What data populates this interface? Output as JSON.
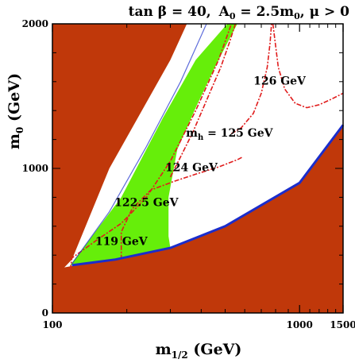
{
  "chart_data": {
    "type": "heatmap",
    "title_parts": {
      "tan_beta": "tan β = 40,",
      "a0": "A",
      "a0_sub": "0",
      "a0_val": " = 2.5m",
      "m0_sub": "0",
      "mu": ",  μ > 0"
    },
    "xlabel": {
      "main": "m",
      "sub": "1/2",
      "tail": " (GeV)"
    },
    "ylabel": {
      "main": "m",
      "sub": "0",
      "tail": " (GeV)"
    },
    "x_scale": "log",
    "xlim": [
      100,
      1500
    ],
    "ylim": [
      0,
      2000
    ],
    "x_ticks": [
      {
        "v": 100,
        "label": "100"
      },
      {
        "v": 1000,
        "label": "1000"
      },
      {
        "v": 1500,
        "label": "1500"
      }
    ],
    "y_ticks": [
      {
        "v": 0,
        "label": "0"
      },
      {
        "v": 1000,
        "label": "1000"
      },
      {
        "v": 2000,
        "label": "2000"
      }
    ],
    "colors": {
      "excluded": "#c0380a",
      "allowed_green": "#66ee0a",
      "relic_blue": "#1a2dcc",
      "contour_red": "#e01c1c",
      "text": "#000000"
    },
    "regions": {
      "excluded_upper_left": [
        [
          100,
          2000
        ],
        [
          100,
          230
        ],
        [
          120,
          370
        ],
        [
          170,
          1000
        ],
        [
          300,
          1750
        ],
        [
          350,
          2000
        ]
      ],
      "excluded_lower_right": [
        [
          100,
          0
        ],
        [
          1500,
          0
        ],
        [
          1500,
          1300
        ],
        [
          1000,
          900
        ],
        [
          500,
          600
        ],
        [
          300,
          450
        ],
        [
          180,
          370
        ],
        [
          125,
          330
        ],
        [
          100,
          300
        ]
      ],
      "green_band": [
        [
          118,
          330
        ],
        [
          190,
          800
        ],
        [
          280,
          1350
        ],
        [
          380,
          1750
        ],
        [
          510,
          2000
        ],
        [
          560,
          2000
        ],
        [
          460,
          1720
        ],
        [
          380,
          1420
        ],
        [
          320,
          1130
        ],
        [
          295,
          800
        ],
        [
          295,
          530
        ],
        [
          300,
          450
        ],
        [
          180,
          370
        ],
        [
          125,
          330
        ]
      ],
      "blue_line": [
        [
          120,
          330
        ],
        [
          180,
          370
        ],
        [
          300,
          450
        ],
        [
          500,
          600
        ],
        [
          1000,
          900
        ],
        [
          1500,
          1300
        ]
      ],
      "blue_edge": [
        [
          120,
          340
        ],
        [
          170,
          700
        ],
        [
          240,
          1150
        ],
        [
          330,
          1600
        ],
        [
          420,
          2000
        ]
      ]
    },
    "contours": [
      {
        "label": "119 GeV",
        "points": [
          [
            118,
            300
          ],
          [
            120,
            380
          ],
          [
            150,
            500
          ],
          [
            190,
            620
          ],
          [
            240,
            800
          ],
          [
            300,
            1050
          ],
          [
            380,
            1400
          ],
          [
            470,
            1750
          ],
          [
            530,
            2000
          ]
        ]
      },
      {
        "label": "122.5 GeV",
        "points": [
          [
            190,
            370
          ],
          [
            190,
            560
          ],
          [
            210,
            720
          ],
          [
            250,
            850
          ],
          [
            310,
            910
          ],
          [
            380,
            960
          ],
          [
            470,
            1010
          ],
          [
            560,
            1060
          ],
          [
            590,
            1080
          ]
        ]
      },
      {
        "label": "124 GeV",
        "points": [
          [
            300,
            940
          ],
          [
            330,
            1080
          ],
          [
            370,
            1250
          ],
          [
            420,
            1470
          ],
          [
            480,
            1700
          ],
          [
            520,
            1870
          ],
          [
            550,
            2000
          ]
        ]
      },
      {
        "label": "125 GeV",
        "points": [
          [
            530,
            1240
          ],
          [
            580,
            1280
          ],
          [
            650,
            1380
          ],
          [
            700,
            1520
          ],
          [
            740,
            1700
          ],
          [
            760,
            1870
          ],
          [
            770,
            2000
          ]
        ]
      },
      {
        "label": "126 GeV",
        "points": [
          [
            780,
            2000
          ],
          [
            820,
            1700
          ],
          [
            870,
            1550
          ],
          [
            960,
            1450
          ],
          [
            1070,
            1420
          ],
          [
            1200,
            1440
          ],
          [
            1350,
            1480
          ],
          [
            1500,
            1520
          ]
        ]
      }
    ],
    "annotations": [
      {
        "text": "126 GeV",
        "x": 830,
        "y": 1580
      },
      {
        "text": "124 GeV",
        "x": 365,
        "y": 980
      },
      {
        "text": "122.5 GeV",
        "x": 240,
        "y": 740
      },
      {
        "text": "119 GeV",
        "x": 190,
        "y": 470
      }
    ],
    "mh_label": {
      "main": "m",
      "sub": "h",
      "tail": "  = 125 GeV",
      "x": 520,
      "y": 1220
    }
  }
}
